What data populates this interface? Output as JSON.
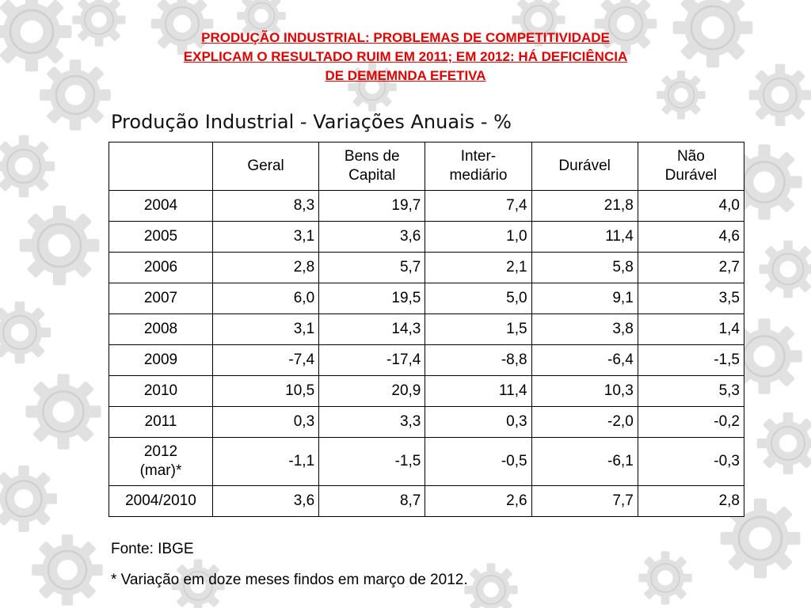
{
  "headline": {
    "line1": "PRODUÇÃO INDUSTRIAL: PROBLEMAS DE COMPETITIVIDADE",
    "line2": "EXPLICAM O RESULTADO RUIM EM 2011; EM 2012: HÁ DEFICIÊNCIA",
    "line3": "DE DEMEMNDA EFETIVA",
    "color": "#e00000"
  },
  "table_title": "Produção Industrial - Variações Anuais - %",
  "table": {
    "headers": [
      {
        "line1": "",
        "line2": ""
      },
      {
        "line1": "Geral",
        "line2": ""
      },
      {
        "line1": "Bens de",
        "line2": "Capital"
      },
      {
        "line1": "Inter-",
        "line2": "mediário"
      },
      {
        "line1": "Durável",
        "line2": ""
      },
      {
        "line1": "Não",
        "line2": "Durável"
      }
    ],
    "rows": [
      {
        "year": "2004",
        "year2": "",
        "values": [
          "8,3",
          "19,7",
          "7,4",
          "21,8",
          "4,0"
        ]
      },
      {
        "year": "2005",
        "year2": "",
        "values": [
          "3,1",
          "3,6",
          "1,0",
          "11,4",
          "4,6"
        ]
      },
      {
        "year": "2006",
        "year2": "",
        "values": [
          "2,8",
          "5,7",
          "2,1",
          "5,8",
          "2,7"
        ]
      },
      {
        "year": "2007",
        "year2": "",
        "values": [
          "6,0",
          "19,5",
          "5,0",
          "9,1",
          "3,5"
        ]
      },
      {
        "year": "2008",
        "year2": "",
        "values": [
          "3,1",
          "14,3",
          "1,5",
          "3,8",
          "1,4"
        ]
      },
      {
        "year": "2009",
        "year2": "",
        "values": [
          "-7,4",
          "-17,4",
          "-8,8",
          "-6,4",
          "-1,5"
        ]
      },
      {
        "year": "2010",
        "year2": "",
        "values": [
          "10,5",
          "20,9",
          "11,4",
          "10,3",
          "5,3"
        ]
      },
      {
        "year": "2011",
        "year2": "",
        "values": [
          "0,3",
          "3,3",
          "0,3",
          "-2,0",
          "-0,2"
        ]
      },
      {
        "year": "2012",
        "year2": "(mar)*",
        "values": [
          "-1,1",
          "-1,5",
          "-0,5",
          "-6,1",
          "-0,3"
        ]
      },
      {
        "year": "2004/2010",
        "year2": "",
        "values": [
          "3,6",
          "8,7",
          "2,6",
          "7,7",
          "2,8"
        ]
      }
    ]
  },
  "source": "Fonte: IBGE",
  "note": "* Variação em doze meses findos em março de 2012.",
  "background": {
    "gear_color": "#d9d9d9",
    "icon": "gear-icon"
  }
}
